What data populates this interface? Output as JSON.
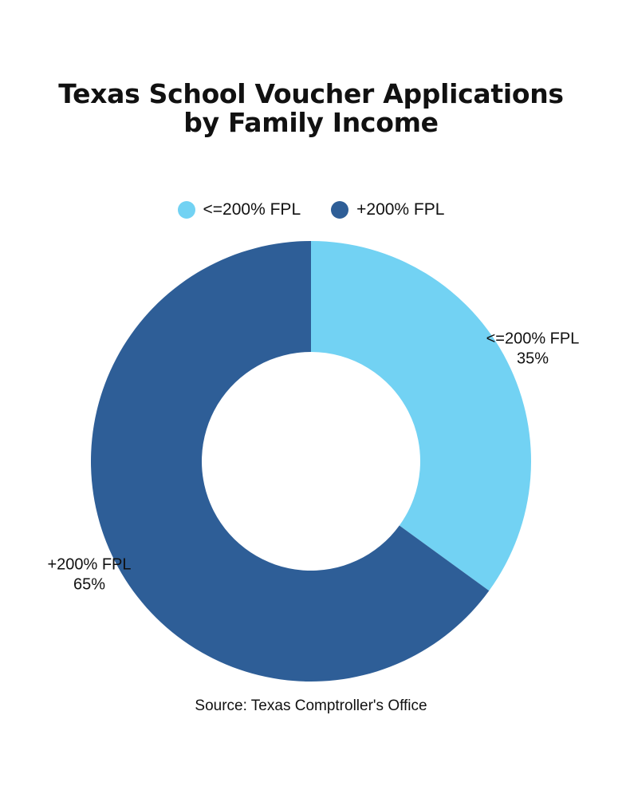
{
  "title_lines": [
    "Texas School Voucher Applications",
    "by Family Income"
  ],
  "chart_data": {
    "type": "pie",
    "style": "donut",
    "title": "Texas School Voucher Applications by Family Income",
    "categories": [
      "<=200% FPL",
      "+200% FPL"
    ],
    "values": [
      35,
      65
    ],
    "unit": "%",
    "labels": [
      "<=200% FPL",
      "+200% FPL"
    ],
    "value_labels": [
      "35%",
      "65%"
    ],
    "colors": [
      "#72d2f3",
      "#2e5e97"
    ],
    "legend_position": "top-center"
  },
  "legend": [
    {
      "label": "<=200% FPL",
      "color": "#72d2f3"
    },
    {
      "label": "+200% FPL",
      "color": "#2e5e97"
    }
  ],
  "source": "Source: Texas Comptroller's Office"
}
